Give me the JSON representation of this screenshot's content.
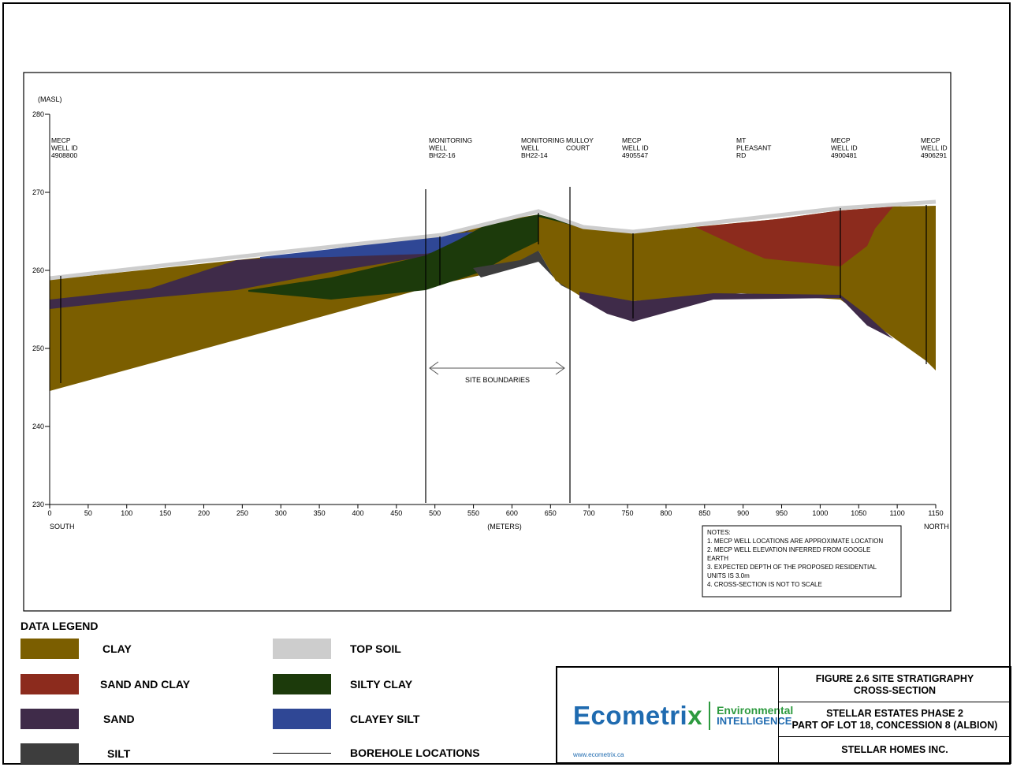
{
  "diagram": {
    "y_axis_unit": "(MASL)",
    "x_axis_unit": "(METERS)",
    "x_axis_left_label": "SOUTH",
    "x_axis_right_label": "NORTH",
    "site_boundaries_label": "SITE BOUNDARIES",
    "y_ticks": [
      "280",
      "270",
      "260",
      "250",
      "240",
      "230"
    ],
    "x_ticks": [
      "0",
      "50",
      "100",
      "150",
      "200",
      "250",
      "300",
      "350",
      "400",
      "450",
      "500",
      "550",
      "600",
      "650",
      "700",
      "750",
      "800",
      "850",
      "900",
      "950",
      "1000",
      "1050",
      "1100",
      "1150"
    ],
    "top_labels": [
      {
        "lines": [
          "MECP",
          "WELL ID",
          "4908800"
        ]
      },
      {
        "lines": [
          "MONITORING",
          "WELL",
          "BH22-16"
        ]
      },
      {
        "lines": [
          "MONITORING",
          "WELL",
          "BH22-14"
        ]
      },
      {
        "lines": [
          "MULLOY",
          "COURT"
        ]
      },
      {
        "lines": [
          "MECP",
          "WELL ID",
          "4905547"
        ]
      },
      {
        "lines": [
          "MT",
          "PLEASANT",
          "RD"
        ]
      },
      {
        "lines": [
          "MECP",
          "WELL ID",
          "4900481"
        ]
      },
      {
        "lines": [
          "MECP",
          "WELL ID",
          "4906291"
        ]
      }
    ],
    "notes": [
      "NOTES:",
      "1.  MECP WELL LOCATIONS ARE APPROXIMATE LOCATION",
      "2.  MECP WELL ELEVATION INFERRED FROM GOOGLE",
      "     EARTH",
      "3.  EXPECTED DEPTH OF THE PROPOSED RESIDENTIAL",
      "     UNITS IS 3.0m",
      "4.  CROSS-SECTION IS NOT TO SCALE"
    ]
  },
  "colors": {
    "clay": "#7b5e00",
    "sand_and_clay": "#8c2b1d",
    "sand": "#3f2b49",
    "silt": "#3d3d3d",
    "top_soil": "#cdcdcd",
    "silty_clay": "#1c3a0b",
    "clayey_silt": "#2f4795"
  },
  "legend": {
    "title": "DATA LEGEND",
    "items": [
      {
        "label": "CLAY",
        "color": "#7b5e00"
      },
      {
        "label": "SAND AND CLAY",
        "color": "#8c2b1d"
      },
      {
        "label": "SAND",
        "color": "#3f2b49"
      },
      {
        "label": "SILT",
        "color": "#3d3d3d"
      },
      {
        "label": "TOP SOIL",
        "color": "#cdcdcd"
      },
      {
        "label": "SILTY CLAY",
        "color": "#1c3a0b"
      },
      {
        "label": "CLAYEY SILT",
        "color": "#2f4795"
      },
      {
        "label": "BOREHOLE LOCATIONS",
        "color": "#000000"
      }
    ]
  },
  "title_block": {
    "figure_title_line1": "FIGURE 2.6 SITE STRATIGRAPHY",
    "figure_title_line2": "CROSS-SECTION",
    "project_line1": "STELLAR ESTATES PHASE 2",
    "project_line2": "PART OF LOT 18, CONCESSION 8 (ALBION)",
    "client": "STELLAR HOMES INC.",
    "logo_main": "Ecometri",
    "logo_x": "x",
    "logo_env": "Environmental",
    "logo_int": "INTELLIGENCE",
    "logo_url": "www.ecometrix.ca"
  }
}
